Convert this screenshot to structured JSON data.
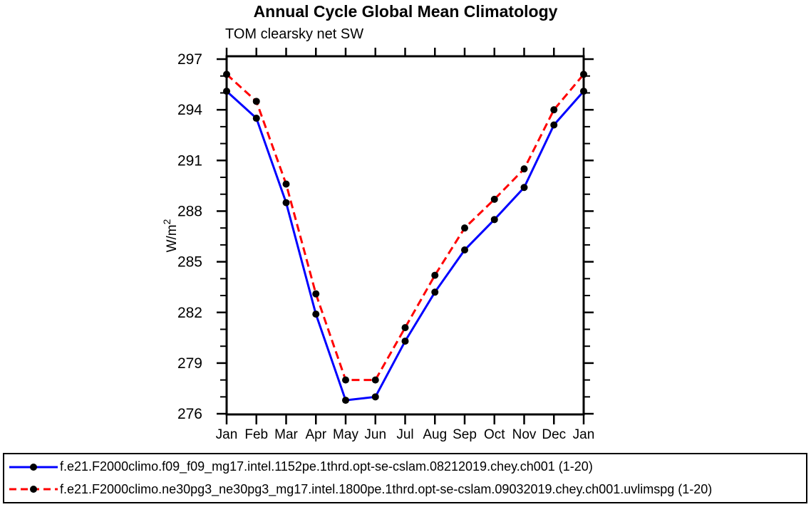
{
  "chart_data": {
    "type": "line",
    "title": "Annual Cycle Global Mean Climatology",
    "subtitle": "TOM clearsky net SW",
    "ylabel": "W/m²",
    "x": [
      "Jan",
      "Feb",
      "Mar",
      "Apr",
      "May",
      "Jun",
      "Jul",
      "Aug",
      "Sep",
      "Oct",
      "Nov",
      "Dec",
      "Jan"
    ],
    "y_major_ticks": [
      276,
      279,
      282,
      285,
      288,
      291,
      294,
      297
    ],
    "y_minor_step": 1,
    "ylim": [
      275.96,
      297.17
    ],
    "grid": false,
    "legend_position": "bottom",
    "axis_color": "#000000",
    "series": [
      {
        "name": "f.e21.F2000climo.f09_f09_mg17.intel.1152pe.1thrd.opt-se-cslam.08212019.chey.ch001 (1-20)",
        "color": "#0000ff",
        "line_style": "solid",
        "marker": "circle",
        "marker_color": "#000000",
        "values": [
          295.1,
          293.5,
          288.5,
          281.9,
          276.8,
          277.0,
          280.3,
          283.2,
          285.7,
          287.5,
          289.4,
          293.1,
          295.1
        ]
      },
      {
        "name": "f.e21.F2000climo.ne30pg3_ne30pg3_mg17.intel.1800pe.1thrd.opt-se-cslam.09032019.chey.ch001.uvlimspg (1-20)",
        "color": "#ff0000",
        "line_style": "dashed",
        "marker": "circle",
        "marker_color": "#000000",
        "values": [
          296.1,
          294.5,
          289.6,
          283.1,
          278.0,
          278.0,
          281.1,
          284.2,
          287.0,
          288.7,
          290.5,
          294.0,
          296.1
        ]
      }
    ]
  }
}
